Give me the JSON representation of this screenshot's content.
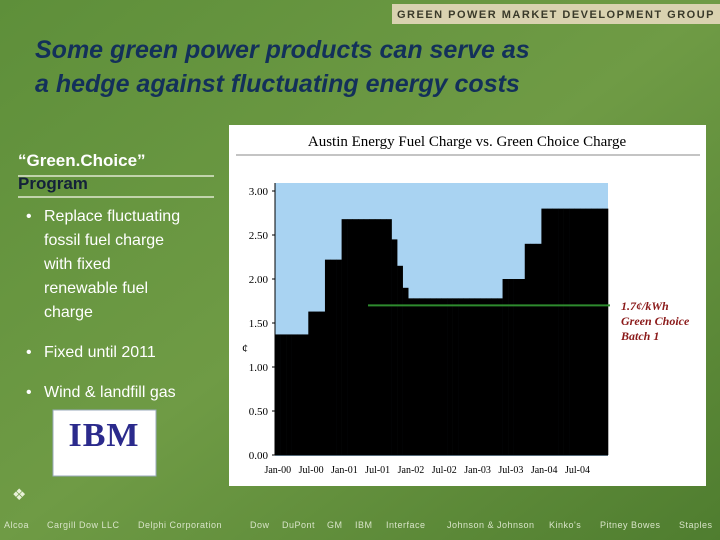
{
  "header": {
    "banner": "GREEN POWER MARKET DEVELOPMENT GROUP",
    "title": [
      "Some green power products can serve as",
      "a hedge against fluctuating energy costs"
    ]
  },
  "sidebar": {
    "heading": "“Green.Choice”",
    "subheading": "Program",
    "bullets": [
      [
        "Replace fluctuating",
        "fossil fuel charge",
        "with fixed",
        "renewable fuel",
        "charge"
      ],
      [
        "Fixed until 2011"
      ],
      [
        "Wind & landfill gas"
      ]
    ],
    "logo": "IBM"
  },
  "footer": [
    "Alcoa",
    "Cargill Dow LLC",
    "Delphi Corporation",
    "Dow",
    "DuPont",
    "GM",
    "IBM",
    "Interface",
    "Johnson & Johnson",
    "Kinko's",
    "Pitney Bowes",
    "Staples"
  ],
  "chart_data": {
    "type": "bar",
    "title": "Austin Energy Fuel Charge vs. Green Choice Charge",
    "y_label": "¢",
    "color": "#000000",
    "background": "#a9d3f2",
    "categories": [
      "Jan-00",
      null,
      null,
      null,
      null,
      null,
      "Jul-00",
      null,
      null,
      null,
      null,
      null,
      "Jan-01",
      null,
      null,
      null,
      null,
      null,
      "Jul-01",
      null,
      null,
      null,
      null,
      null,
      "Jan-02",
      null,
      null,
      null,
      null,
      null,
      "Jul-02",
      null,
      null,
      null,
      null,
      null,
      "Jan-03",
      null,
      null,
      null,
      null,
      null,
      "Jul-03",
      null,
      null,
      null,
      null,
      null,
      "Jan-04",
      null,
      null,
      null,
      null,
      null,
      "Jul-04",
      null,
      null,
      null,
      null,
      null
    ],
    "values": [
      1.37,
      1.37,
      1.37,
      1.37,
      1.37,
      1.37,
      1.63,
      1.63,
      1.63,
      2.22,
      2.22,
      2.22,
      2.68,
      2.68,
      2.68,
      2.68,
      2.68,
      2.68,
      2.68,
      2.68,
      2.68,
      2.45,
      2.15,
      1.9,
      1.78,
      1.78,
      1.78,
      1.78,
      1.78,
      1.78,
      1.78,
      1.78,
      1.78,
      1.78,
      1.78,
      1.78,
      1.78,
      1.78,
      1.78,
      1.78,
      1.78,
      2.0,
      2.0,
      2.0,
      2.0,
      2.4,
      2.4,
      2.4,
      2.8,
      2.8,
      2.8,
      2.8,
      2.8,
      2.8,
      2.8,
      2.8,
      2.8,
      2.8,
      2.8,
      2.8
    ],
    "ylim": [
      0,
      3
    ],
    "yticks": [
      {
        "value": 0,
        "label": "0.00"
      },
      {
        "value": 0.5,
        "label": "0.50"
      },
      {
        "value": 1,
        "label": "1.00"
      },
      {
        "value": 1.5,
        "label": "1.50"
      },
      {
        "value": 2,
        "label": "2.00"
      },
      {
        "value": 2.5,
        "label": "2.50"
      },
      {
        "value": 3,
        "label": "3.00"
      }
    ],
    "reference": {
      "value": 1.7,
      "color": "#2e8b2e",
      "label": [
        "1.7¢/kWh",
        "Green Choice",
        "Batch 1"
      ]
    }
  }
}
